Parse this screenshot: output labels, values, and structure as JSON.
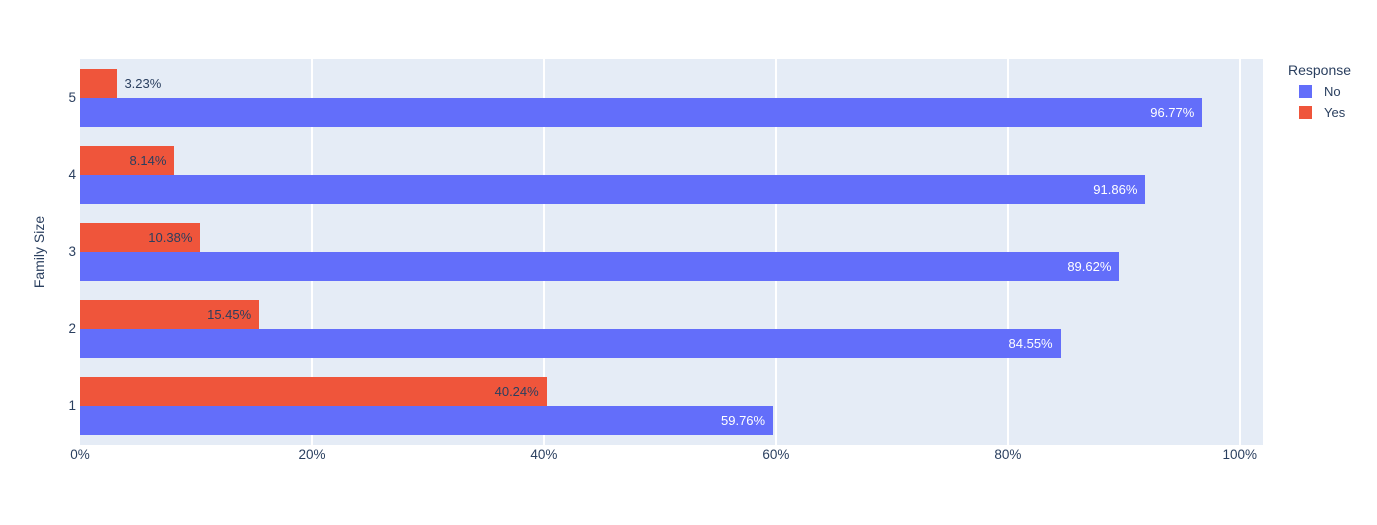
{
  "chart_data": {
    "type": "bar",
    "orientation": "horizontal",
    "title": "",
    "xlabel": "",
    "ylabel": "Family Size",
    "categories": [
      "5",
      "4",
      "3",
      "2",
      "1"
    ],
    "series": [
      {
        "name": "No",
        "color": "#636EFA",
        "row_in_group": 1,
        "values": [
          96.77,
          91.86,
          89.62,
          84.55,
          59.76
        ],
        "labels": [
          "96.77%",
          "91.86%",
          "89.62%",
          "84.55%",
          "59.76%"
        ],
        "label_color": "#ffffff",
        "labels_outside": [
          false,
          false,
          false,
          false,
          false
        ]
      },
      {
        "name": "Yes",
        "color": "#EF553B",
        "row_in_group": 0,
        "values": [
          3.23,
          8.14,
          10.38,
          15.45,
          40.24
        ],
        "labels": [
          "3.23%",
          "8.14%",
          "10.38%",
          "15.45%",
          "40.24%"
        ],
        "label_color": "#2a3f5f",
        "labels_outside": [
          true,
          false,
          false,
          false,
          false
        ]
      }
    ],
    "x_ticks": [
      {
        "value": 0,
        "label": "0%"
      },
      {
        "value": 20,
        "label": "20%"
      },
      {
        "value": 40,
        "label": "40%"
      },
      {
        "value": 60,
        "label": "60%"
      },
      {
        "value": 80,
        "label": "80%"
      },
      {
        "value": 100,
        "label": "100%"
      }
    ],
    "xlim": [
      0,
      102
    ],
    "grid": true,
    "legend": {
      "title": "Response",
      "position": "top-right",
      "items": [
        {
          "label": "No",
          "color": "#636EFA"
        },
        {
          "label": "Yes",
          "color": "#EF553B"
        }
      ]
    },
    "colors": {
      "plot_background": "#e5ecf6",
      "paper_background": "#ffffff",
      "gridline": "#ffffff",
      "text": "#2a3f5f"
    }
  }
}
